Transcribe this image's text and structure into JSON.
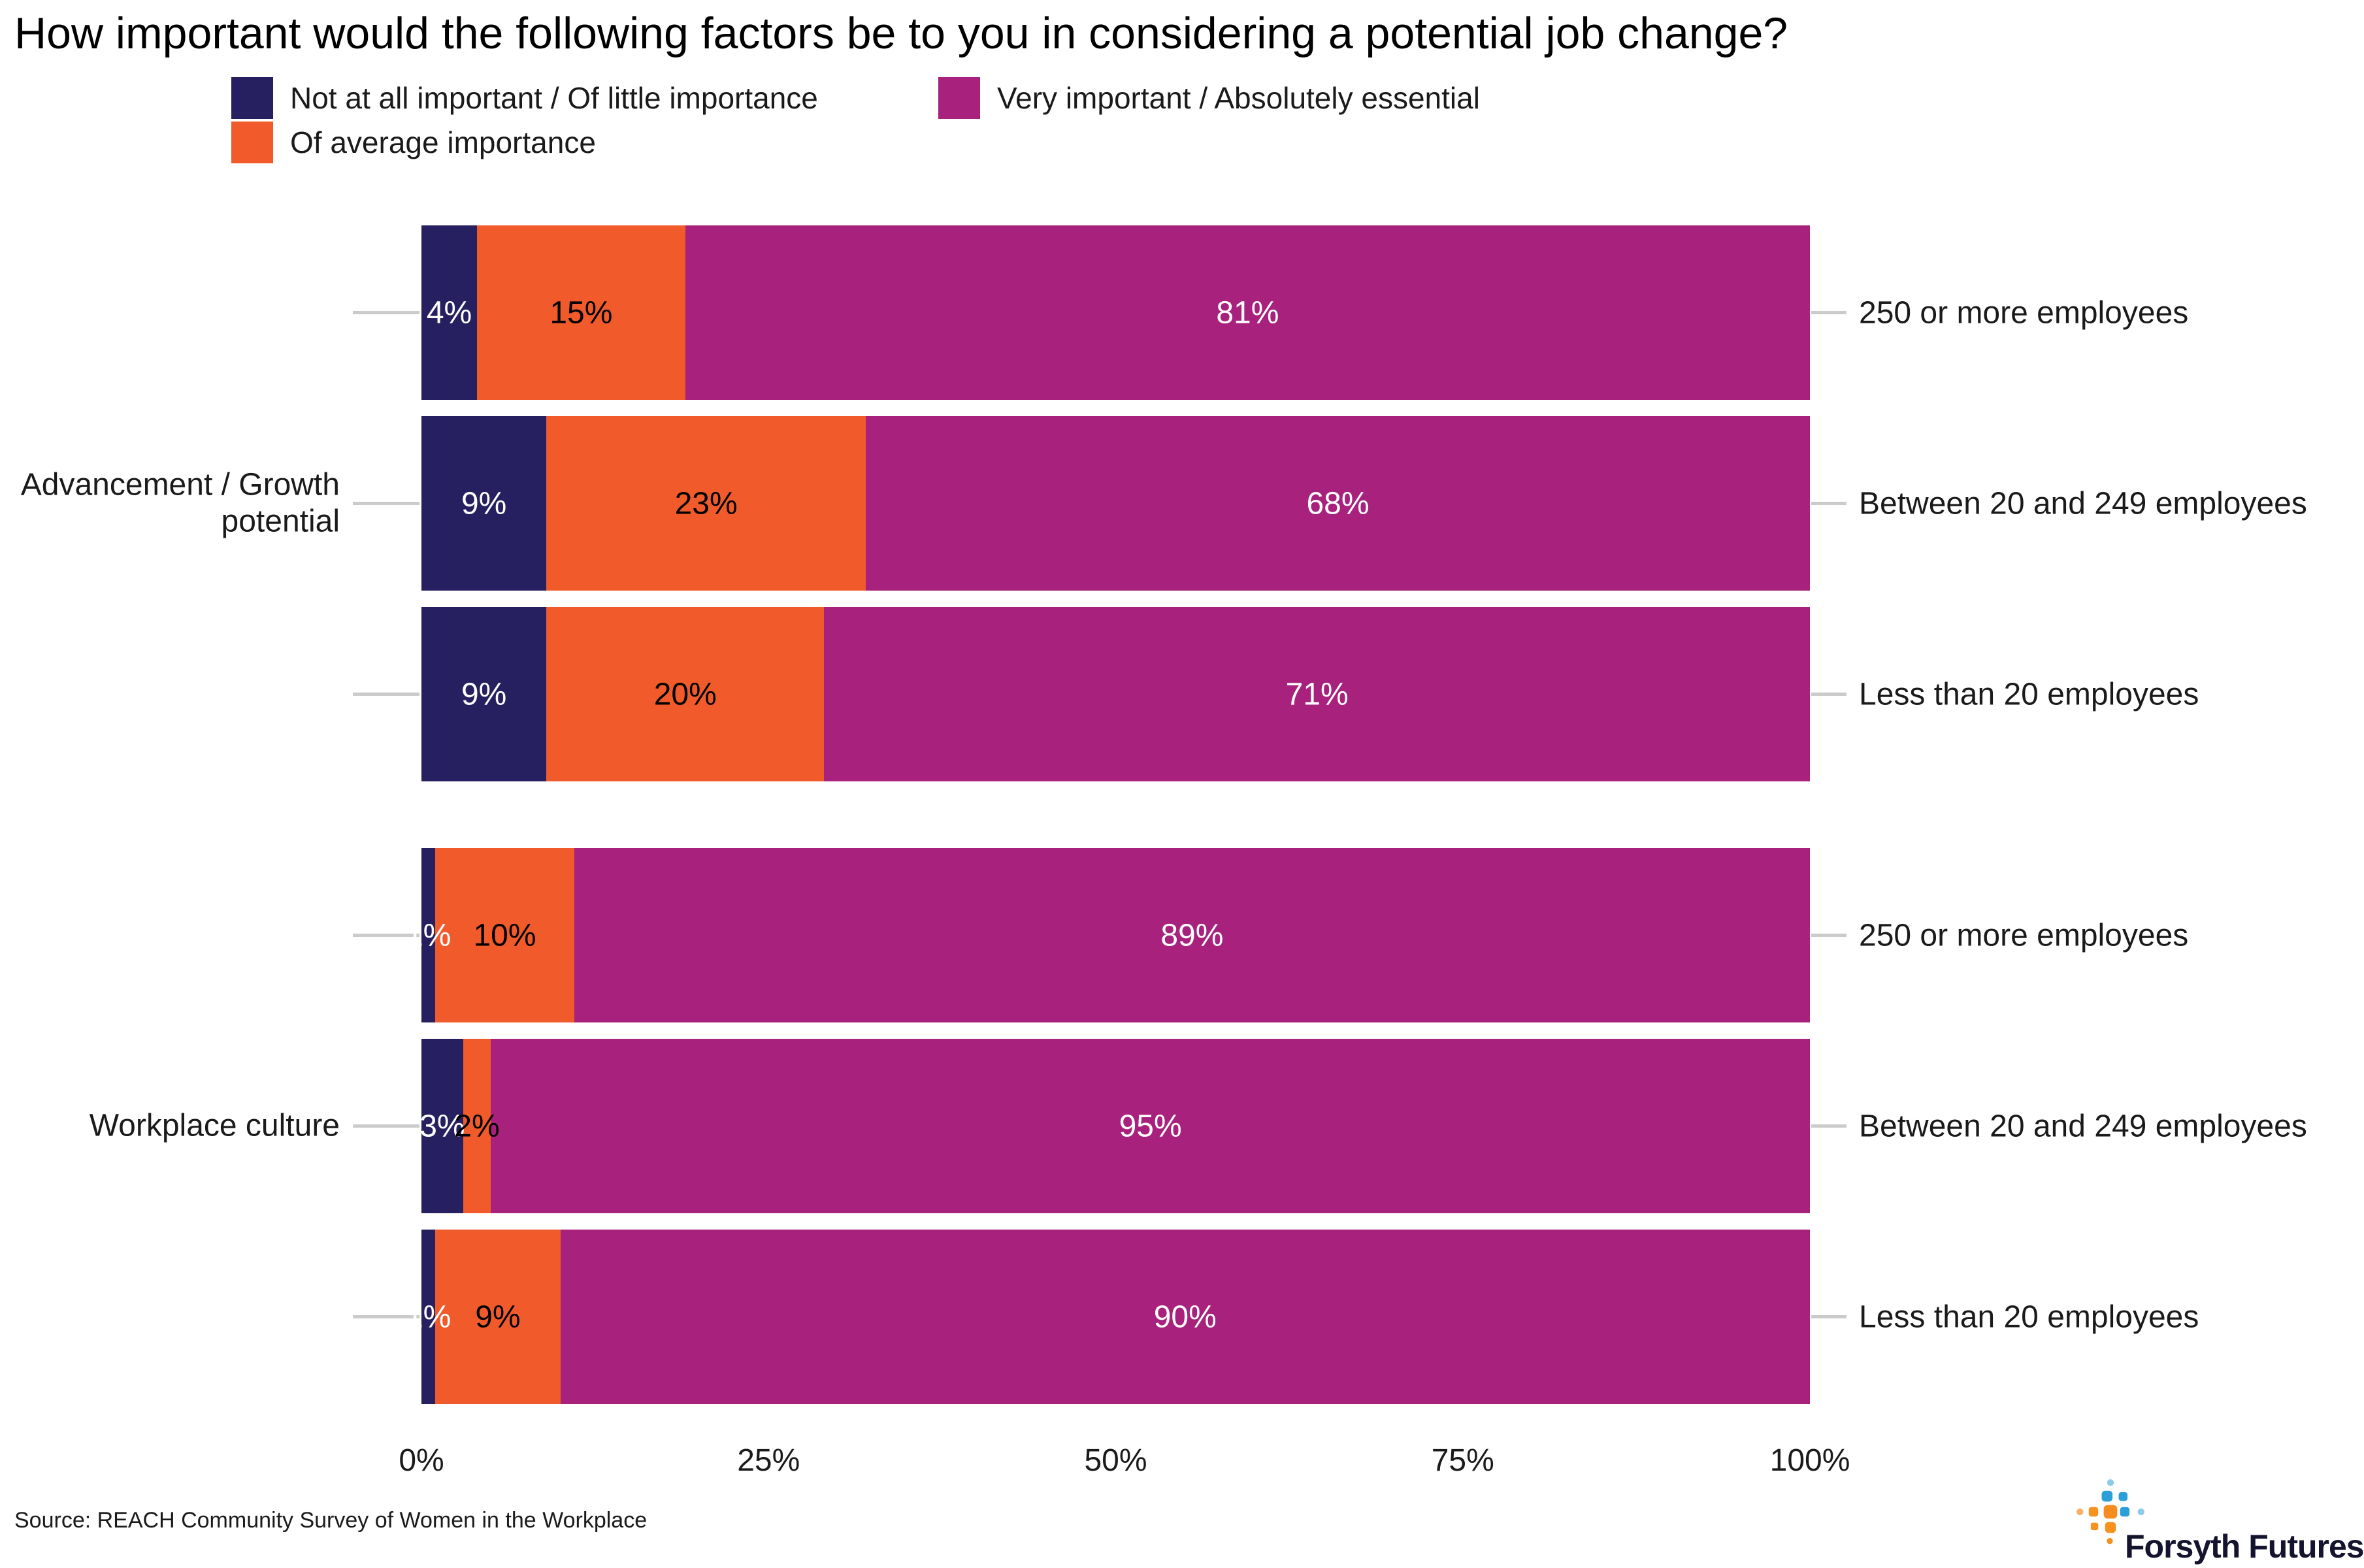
{
  "title": "How important would the following factors be to you in considering a potential job change?",
  "legend": {
    "items": [
      {
        "label": "Not at all important / Of little importance",
        "color": "#272060"
      },
      {
        "label": "Of average importance",
        "color": "#f15b2b"
      },
      {
        "label": "Very important / Absolutely essential",
        "color": "#a7217d"
      }
    ]
  },
  "chart_data": {
    "type": "bar",
    "orientation": "horizontal",
    "stacked": true,
    "unit": "%",
    "xlim": [
      0,
      100
    ],
    "x_ticks": [
      "0%",
      "25%",
      "50%",
      "75%",
      "100%"
    ],
    "x_tick_values": [
      0,
      25,
      50,
      75,
      100
    ],
    "series_names": [
      "Not at all important / Of little importance",
      "Of average importance",
      "Very important / Absolutely essential"
    ],
    "series_colors": [
      "#272060",
      "#f15b2b",
      "#a7217d"
    ],
    "label_text_colors": [
      "#ffffff",
      "#000000",
      "#ffffff"
    ],
    "legend_position": "top",
    "grid": false,
    "groups": [
      {
        "label": "Advancement / Growth potential",
        "bars": [
          {
            "category": "250 or more employees",
            "values": [
              4,
              15,
              81
            ],
            "labels": [
              "4%",
              "15%",
              "81%"
            ]
          },
          {
            "category": "Between 20 and 249 employees",
            "values": [
              9,
              23,
              68
            ],
            "labels": [
              "9%",
              "23%",
              "68%"
            ]
          },
          {
            "category": "Less than 20 employees",
            "values": [
              9,
              20,
              71
            ],
            "labels": [
              "9%",
              "20%",
              "71%"
            ]
          }
        ]
      },
      {
        "label": "Workplace culture",
        "bars": [
          {
            "category": "250 or more employees",
            "values": [
              1,
              10,
              89
            ],
            "labels": [
              "1%",
              "10%",
              "89%"
            ]
          },
          {
            "category": "Between 20 and 249 employees",
            "values": [
              3,
              2,
              95
            ],
            "labels": [
              "3%",
              "2%",
              "95%"
            ]
          },
          {
            "category": "Less than 20 employees",
            "values": [
              1,
              9,
              90
            ],
            "labels": [
              "1%",
              "9%",
              "90%"
            ]
          }
        ]
      }
    ]
  },
  "source": "Source: REACH Community Survey of Women in the Workplace",
  "logo": {
    "text": "Forsyth Futures",
    "icon": "dot-grid-plus-icon",
    "icon_colors": {
      "blue": "#2b9fd8",
      "light_blue": "#8ecbeb",
      "orange": "#f6921e",
      "light_orange": "#f9b066"
    }
  }
}
